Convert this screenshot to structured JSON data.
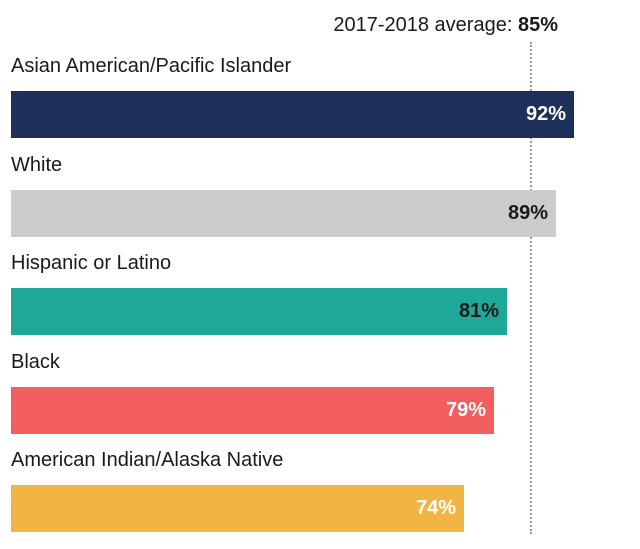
{
  "chart_data": {
    "type": "bar",
    "orientation": "horizontal",
    "average": {
      "label": "2017-2018 average:",
      "value": 85,
      "value_label": "85%"
    },
    "categories": [
      "Asian American/Pacific Islander",
      "White",
      "Hispanic or Latino",
      "Black",
      "American Indian/Alaska Native"
    ],
    "values": [
      92,
      89,
      81,
      79,
      74
    ],
    "value_labels": [
      "92%",
      "89%",
      "81%",
      "79%",
      "74%"
    ],
    "colors": [
      "#1e2f5a",
      "#cccccd",
      "#1fa898",
      "#f25d5d",
      "#f2b544"
    ],
    "label_colors": [
      "#ffffff",
      "#1a1a1a",
      "#1a1a1a",
      "#ffffff",
      "#ffffff"
    ],
    "grid": false
  }
}
